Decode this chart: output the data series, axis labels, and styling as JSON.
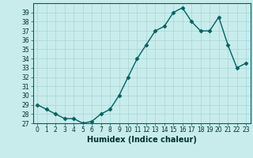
{
  "x": [
    0,
    1,
    2,
    3,
    4,
    5,
    6,
    7,
    8,
    9,
    10,
    11,
    12,
    13,
    14,
    15,
    16,
    17,
    18,
    19,
    20,
    21,
    22,
    23
  ],
  "y": [
    29,
    28.5,
    28,
    27.5,
    27.5,
    27,
    27.2,
    28,
    28.5,
    30,
    32,
    34,
    35.5,
    37,
    37.5,
    39,
    39.5,
    38,
    37,
    37,
    38.5,
    35.5,
    33,
    33.5
  ],
  "line_color": "#006060",
  "marker_color": "#006060",
  "bg_color": "#c8ecec",
  "grid_color": "#a8d4d4",
  "xlabel": "Humidex (Indice chaleur)",
  "ylim": [
    27,
    40
  ],
  "yticks": [
    27,
    28,
    29,
    30,
    31,
    32,
    33,
    34,
    35,
    36,
    37,
    38,
    39
  ],
  "xticks": [
    0,
    1,
    2,
    3,
    4,
    5,
    6,
    7,
    8,
    9,
    10,
    11,
    12,
    13,
    14,
    15,
    16,
    17,
    18,
    19,
    20,
    21,
    22,
    23
  ],
  "tick_label_fontsize": 5.5,
  "xlabel_fontsize": 7,
  "line_width": 1.0,
  "marker_size": 2.5
}
